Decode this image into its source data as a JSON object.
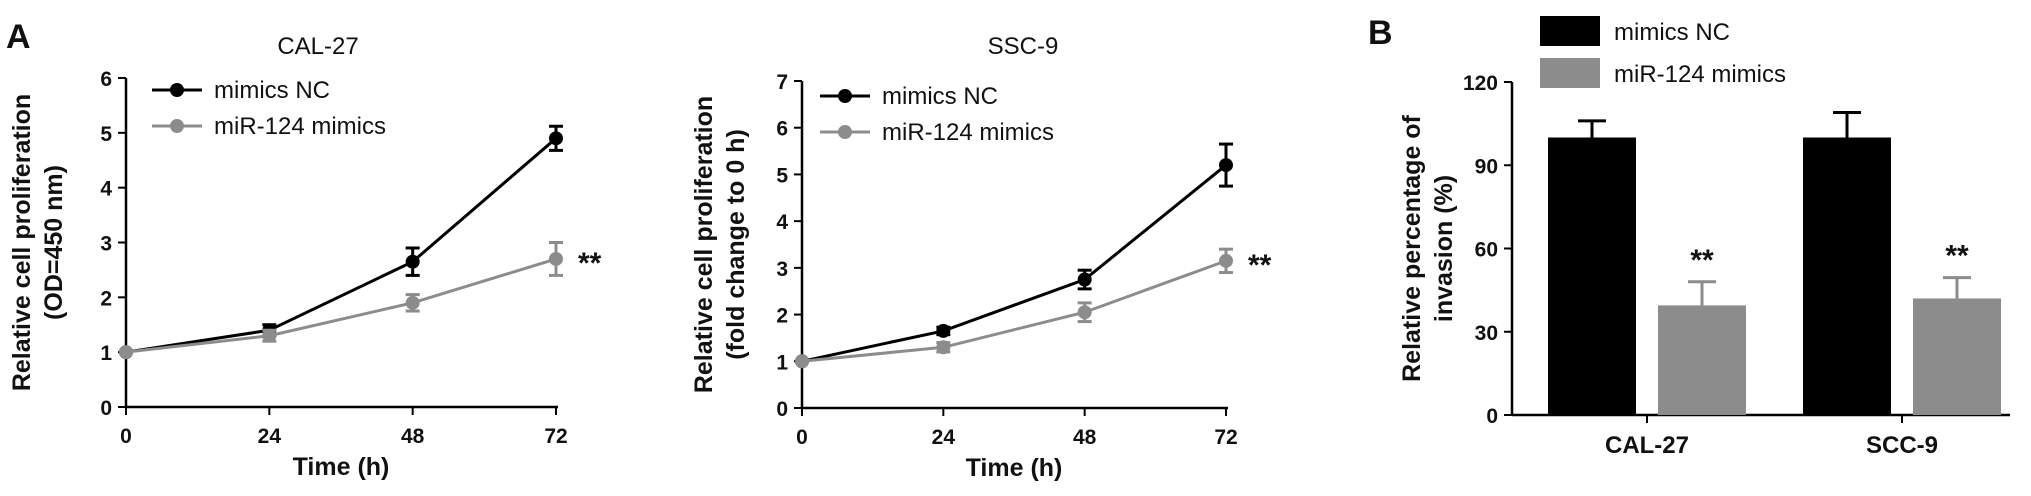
{
  "panels": {
    "a_label": "A",
    "b_label": "B"
  },
  "colors": {
    "mimics_nc": "#000000",
    "mir124": "#8c8c8c",
    "axis": "#000000"
  },
  "chart_data": [
    {
      "type": "line",
      "title": "CAL-27",
      "xlabel": "Time (h)",
      "ylabel": [
        "Relative cell proliferation",
        "(OD=450 nm)"
      ],
      "x": [
        0,
        24,
        48,
        72
      ],
      "xlim": [
        0,
        72
      ],
      "ylim": [
        0,
        6
      ],
      "yticks": [
        0,
        1,
        2,
        3,
        4,
        5,
        6
      ],
      "xticks": [
        0,
        24,
        48,
        72
      ],
      "legend_position": "top-left",
      "series": [
        {
          "name": "mimics  NC",
          "values": [
            1,
            1.4,
            2.65,
            4.9
          ],
          "errors": [
            0,
            0.1,
            0.25,
            0.22
          ]
        },
        {
          "name": "miR-124 mimics",
          "values": [
            1,
            1.3,
            1.9,
            2.7
          ],
          "errors": [
            0,
            0.1,
            0.15,
            0.3
          ]
        }
      ],
      "annotation": "**"
    },
    {
      "type": "line",
      "title": "SSC-9",
      "xlabel": "Time (h)",
      "ylabel": [
        "Relative cell proliferation",
        "(fold change to 0 h)"
      ],
      "x": [
        0,
        24,
        48,
        72
      ],
      "xlim": [
        0,
        72
      ],
      "ylim": [
        0,
        7
      ],
      "yticks": [
        0,
        1,
        2,
        3,
        4,
        5,
        6,
        7
      ],
      "xticks": [
        0,
        24,
        48,
        72
      ],
      "legend_position": "top-left",
      "series": [
        {
          "name": "mimics  NC",
          "values": [
            1,
            1.65,
            2.75,
            5.2
          ],
          "errors": [
            0,
            0.08,
            0.2,
            0.45
          ]
        },
        {
          "name": "miR-124 mimics",
          "values": [
            1,
            1.3,
            2.05,
            3.15
          ],
          "errors": [
            0,
            0.1,
            0.2,
            0.25
          ]
        }
      ],
      "annotation": "**"
    },
    {
      "type": "bar",
      "title": "",
      "xlabel": "",
      "ylabel": [
        "Relative percentage of",
        "invasion (%)"
      ],
      "categories": [
        "CAL-27",
        "SCC-9"
      ],
      "ylim": [
        0,
        120
      ],
      "yticks": [
        0,
        30,
        60,
        90,
        120
      ],
      "legend_position": "top",
      "series": [
        {
          "name": "mimics NC",
          "values": [
            100,
            100
          ],
          "errors": [
            6,
            9
          ]
        },
        {
          "name": "miR-124 mimics",
          "values": [
            39.5,
            42
          ],
          "errors": [
            8.5,
            7.5
          ]
        }
      ],
      "annotation": "**"
    }
  ]
}
